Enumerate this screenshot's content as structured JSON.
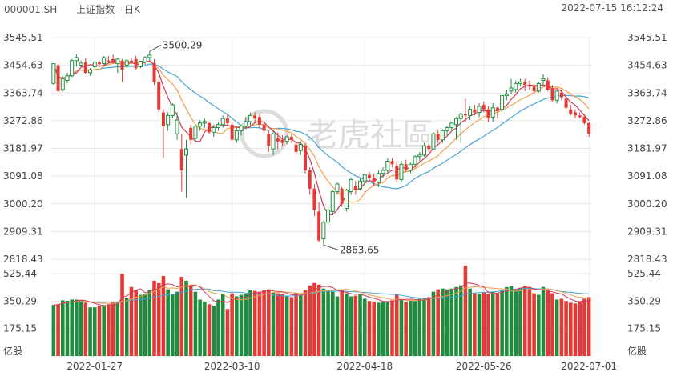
{
  "header": {
    "symbol": "000001.SH",
    "name": "上证指数 - 日K",
    "timestamp": "2022-07-15 16:12:24"
  },
  "watermark": "老虎社區",
  "colors": {
    "up": "#e53935",
    "down": "#1e8e3e",
    "ma5": "#d23a59",
    "ma10": "#f0a04a",
    "ma20": "#48a6d8",
    "vol_ma5": "#d23a59",
    "vol_ma10": "#f0a04a",
    "vol_ma20": "#48a6d8"
  },
  "chart_data": {
    "type": "candlestick",
    "price_axis": {
      "ticks": [
        "3545.51",
        "3454.63",
        "3363.74",
        "3272.86",
        "3181.97",
        "3091.08",
        "3000.20",
        "2909.31",
        "2818.43"
      ],
      "range": [
        2818.43,
        3545.51
      ]
    },
    "volume_axis": {
      "ticks": [
        "525.44",
        "350.29",
        "175.15",
        "亿股"
      ],
      "range": [
        0,
        525.44
      ]
    },
    "x_axis": {
      "ticks": [
        "2022-01-27",
        "2022-03-10",
        "2022-04-18",
        "2022-05-26",
        "2022-07-01"
      ]
    },
    "annotations": [
      {
        "label": "3500.29"
      },
      {
        "label": "2863.65"
      }
    ],
    "series": [
      "MA5",
      "MA10",
      "MA20"
    ],
    "candles": [
      {
        "o": 3395,
        "h": 3460,
        "l": 3390,
        "c": 3460,
        "v": 325
      },
      {
        "o": 3455,
        "h": 3470,
        "l": 3360,
        "c": 3370,
        "v": 330
      },
      {
        "o": 3375,
        "h": 3420,
        "l": 3368,
        "c": 3410,
        "v": 355
      },
      {
        "o": 3405,
        "h": 3430,
        "l": 3395,
        "c": 3420,
        "v": 352
      },
      {
        "o": 3420,
        "h": 3475,
        "l": 3415,
        "c": 3470,
        "v": 360
      },
      {
        "o": 3470,
        "h": 3490,
        "l": 3450,
        "c": 3480,
        "v": 360
      },
      {
        "o": 3455,
        "h": 3470,
        "l": 3450,
        "c": 3462,
        "v": 355
      },
      {
        "o": 3465,
        "h": 3480,
        "l": 3425,
        "c": 3430,
        "v": 340
      },
      {
        "o": 3430,
        "h": 3445,
        "l": 3420,
        "c": 3440,
        "v": 310
      },
      {
        "o": 3450,
        "h": 3470,
        "l": 3445,
        "c": 3465,
        "v": 310
      },
      {
        "o": 3465,
        "h": 3470,
        "l": 3455,
        "c": 3458,
        "v": 320
      },
      {
        "o": 3460,
        "h": 3485,
        "l": 3455,
        "c": 3480,
        "v": 325
      },
      {
        "o": 3470,
        "h": 3485,
        "l": 3460,
        "c": 3466,
        "v": 330
      },
      {
        "o": 3475,
        "h": 3490,
        "l": 3460,
        "c": 3462,
        "v": 345
      },
      {
        "o": 3460,
        "h": 3480,
        "l": 3430,
        "c": 3475,
        "v": 345
      },
      {
        "o": 3470,
        "h": 3475,
        "l": 3400,
        "c": 3440,
        "v": 525
      },
      {
        "o": 3455,
        "h": 3475,
        "l": 3445,
        "c": 3470,
        "v": 370
      },
      {
        "o": 3470,
        "h": 3480,
        "l": 3460,
        "c": 3465,
        "v": 440
      },
      {
        "o": 3475,
        "h": 3485,
        "l": 3440,
        "c": 3445,
        "v": 420
      },
      {
        "o": 3450,
        "h": 3470,
        "l": 3445,
        "c": 3468,
        "v": 390
      },
      {
        "o": 3465,
        "h": 3485,
        "l": 3455,
        "c": 3480,
        "v": 395
      },
      {
        "o": 3480,
        "h": 3500,
        "l": 3470,
        "c": 3488,
        "v": 420
      },
      {
        "o": 3462,
        "h": 3475,
        "l": 3390,
        "c": 3400,
        "v": 480
      },
      {
        "o": 3400,
        "h": 3410,
        "l": 3300,
        "c": 3310,
        "v": 465
      },
      {
        "o": 3300,
        "h": 3310,
        "l": 3150,
        "c": 3255,
        "v": 510
      },
      {
        "o": 3260,
        "h": 3300,
        "l": 3240,
        "c": 3290,
        "v": 425
      },
      {
        "o": 3290,
        "h": 3330,
        "l": 3280,
        "c": 3325,
        "v": 395
      },
      {
        "o": 3230,
        "h": 3300,
        "l": 3210,
        "c": 3275,
        "v": 410
      },
      {
        "o": 3180,
        "h": 3230,
        "l": 3040,
        "c": 3110,
        "v": 505
      },
      {
        "o": 3160,
        "h": 3210,
        "l": 3020,
        "c": 3180,
        "v": 480
      },
      {
        "o": 3250,
        "h": 3260,
        "l": 3195,
        "c": 3210,
        "v": 450
      },
      {
        "o": 3215,
        "h": 3260,
        "l": 3205,
        "c": 3255,
        "v": 410
      },
      {
        "o": 3255,
        "h": 3275,
        "l": 3240,
        "c": 3265,
        "v": 360
      },
      {
        "o": 3265,
        "h": 3280,
        "l": 3250,
        "c": 3270,
        "v": 345
      },
      {
        "o": 3265,
        "h": 3270,
        "l": 3230,
        "c": 3235,
        "v": 330
      },
      {
        "o": 3235,
        "h": 3260,
        "l": 3220,
        "c": 3250,
        "v": 320
      },
      {
        "o": 3250,
        "h": 3270,
        "l": 3240,
        "c": 3260,
        "v": 360
      },
      {
        "o": 3260,
        "h": 3290,
        "l": 3250,
        "c": 3280,
        "v": 395
      },
      {
        "o": 3280,
        "h": 3295,
        "l": 3260,
        "c": 3265,
        "v": 300
      },
      {
        "o": 3260,
        "h": 3270,
        "l": 3200,
        "c": 3210,
        "v": 400
      },
      {
        "o": 3210,
        "h": 3250,
        "l": 3200,
        "c": 3240,
        "v": 380
      },
      {
        "o": 3240,
        "h": 3260,
        "l": 3225,
        "c": 3255,
        "v": 390
      },
      {
        "o": 3255,
        "h": 3285,
        "l": 3245,
        "c": 3270,
        "v": 395
      },
      {
        "o": 3270,
        "h": 3300,
        "l": 3255,
        "c": 3290,
        "v": 420
      },
      {
        "o": 3290,
        "h": 3300,
        "l": 3265,
        "c": 3280,
        "v": 415
      },
      {
        "o": 3285,
        "h": 3295,
        "l": 3250,
        "c": 3260,
        "v": 410
      },
      {
        "o": 3260,
        "h": 3275,
        "l": 3230,
        "c": 3240,
        "v": 420
      },
      {
        "o": 3230,
        "h": 3240,
        "l": 3170,
        "c": 3190,
        "v": 425
      },
      {
        "o": 3180,
        "h": 3240,
        "l": 3160,
        "c": 3230,
        "v": 405
      },
      {
        "o": 3215,
        "h": 3235,
        "l": 3180,
        "c": 3205,
        "v": 400
      },
      {
        "o": 3210,
        "h": 3225,
        "l": 3190,
        "c": 3200,
        "v": 395
      },
      {
        "o": 3205,
        "h": 3225,
        "l": 3195,
        "c": 3220,
        "v": 380
      },
      {
        "o": 3220,
        "h": 3230,
        "l": 3200,
        "c": 3210,
        "v": 375
      },
      {
        "o": 3195,
        "h": 3205,
        "l": 3160,
        "c": 3170,
        "v": 400
      },
      {
        "o": 3175,
        "h": 3205,
        "l": 3160,
        "c": 3195,
        "v": 385
      },
      {
        "o": 3190,
        "h": 3200,
        "l": 3100,
        "c": 3110,
        "v": 420
      },
      {
        "o": 3110,
        "h": 3120,
        "l": 3030,
        "c": 3050,
        "v": 450
      },
      {
        "o": 3050,
        "h": 3065,
        "l": 2960,
        "c": 2980,
        "v": 465
      },
      {
        "o": 2975,
        "h": 3005,
        "l": 2875,
        "c": 2880,
        "v": 455
      },
      {
        "o": 2885,
        "h": 2945,
        "l": 2865,
        "c": 2940,
        "v": 430
      },
      {
        "o": 2940,
        "h": 2990,
        "l": 2930,
        "c": 2980,
        "v": 420
      },
      {
        "o": 2975,
        "h": 3045,
        "l": 2965,
        "c": 3040,
        "v": 410
      },
      {
        "o": 3040,
        "h": 3070,
        "l": 3030,
        "c": 3065,
        "v": 380
      },
      {
        "o": 3050,
        "h": 3055,
        "l": 2990,
        "c": 3000,
        "v": 420
      },
      {
        "o": 2985,
        "h": 3050,
        "l": 2975,
        "c": 3045,
        "v": 400
      },
      {
        "o": 3040,
        "h": 3085,
        "l": 3030,
        "c": 3080,
        "v": 380
      },
      {
        "o": 3060,
        "h": 3075,
        "l": 3030,
        "c": 3045,
        "v": 385
      },
      {
        "o": 3050,
        "h": 3085,
        "l": 3045,
        "c": 3075,
        "v": 395
      },
      {
        "o": 3075,
        "h": 3100,
        "l": 3060,
        "c": 3095,
        "v": 365
      },
      {
        "o": 3095,
        "h": 3105,
        "l": 3075,
        "c": 3085,
        "v": 350
      },
      {
        "o": 3085,
        "h": 3100,
        "l": 3060,
        "c": 3070,
        "v": 345
      },
      {
        "o": 3070,
        "h": 3110,
        "l": 3055,
        "c": 3100,
        "v": 340
      },
      {
        "o": 3100,
        "h": 3120,
        "l": 3085,
        "c": 3110,
        "v": 345
      },
      {
        "o": 3110,
        "h": 3150,
        "l": 3100,
        "c": 3140,
        "v": 350
      },
      {
        "o": 3140,
        "h": 3150,
        "l": 3120,
        "c": 3130,
        "v": 355
      },
      {
        "o": 3125,
        "h": 3140,
        "l": 3070,
        "c": 3080,
        "v": 395
      },
      {
        "o": 3080,
        "h": 3140,
        "l": 3070,
        "c": 3130,
        "v": 360
      },
      {
        "o": 3130,
        "h": 3145,
        "l": 3105,
        "c": 3110,
        "v": 345
      },
      {
        "o": 3110,
        "h": 3135,
        "l": 3100,
        "c": 3130,
        "v": 355
      },
      {
        "o": 3130,
        "h": 3160,
        "l": 3125,
        "c": 3155,
        "v": 350
      },
      {
        "o": 3155,
        "h": 3170,
        "l": 3140,
        "c": 3160,
        "v": 365
      },
      {
        "o": 3160,
        "h": 3200,
        "l": 3155,
        "c": 3190,
        "v": 370
      },
      {
        "o": 3190,
        "h": 3200,
        "l": 3170,
        "c": 3180,
        "v": 375
      },
      {
        "o": 3180,
        "h": 3235,
        "l": 3175,
        "c": 3230,
        "v": 410
      },
      {
        "o": 3230,
        "h": 3240,
        "l": 3200,
        "c": 3210,
        "v": 425
      },
      {
        "o": 3210,
        "h": 3245,
        "l": 3200,
        "c": 3240,
        "v": 430
      },
      {
        "o": 3240,
        "h": 3255,
        "l": 3225,
        "c": 3250,
        "v": 425
      },
      {
        "o": 3250,
        "h": 3270,
        "l": 3240,
        "c": 3265,
        "v": 430
      },
      {
        "o": 3260,
        "h": 3285,
        "l": 3210,
        "c": 3280,
        "v": 440
      },
      {
        "o": 3280,
        "h": 3300,
        "l": 3200,
        "c": 3295,
        "v": 450
      },
      {
        "o": 3295,
        "h": 3345,
        "l": 3270,
        "c": 3290,
        "v": 575
      },
      {
        "o": 3290,
        "h": 3320,
        "l": 3275,
        "c": 3310,
        "v": 430
      },
      {
        "o": 3310,
        "h": 3325,
        "l": 3290,
        "c": 3300,
        "v": 400
      },
      {
        "o": 3300,
        "h": 3330,
        "l": 3285,
        "c": 3320,
        "v": 395
      },
      {
        "o": 3325,
        "h": 3335,
        "l": 3300,
        "c": 3310,
        "v": 405
      },
      {
        "o": 3310,
        "h": 3320,
        "l": 3270,
        "c": 3280,
        "v": 395
      },
      {
        "o": 3285,
        "h": 3330,
        "l": 3270,
        "c": 3315,
        "v": 410
      },
      {
        "o": 3315,
        "h": 3320,
        "l": 3280,
        "c": 3305,
        "v": 400
      },
      {
        "o": 3310,
        "h": 3360,
        "l": 3300,
        "c": 3355,
        "v": 420
      },
      {
        "o": 3355,
        "h": 3375,
        "l": 3340,
        "c": 3360,
        "v": 440
      },
      {
        "o": 3370,
        "h": 3410,
        "l": 3360,
        "c": 3380,
        "v": 445
      },
      {
        "o": 3375,
        "h": 3405,
        "l": 3365,
        "c": 3395,
        "v": 420
      },
      {
        "o": 3395,
        "h": 3410,
        "l": 3385,
        "c": 3400,
        "v": 435
      },
      {
        "o": 3400,
        "h": 3410,
        "l": 3370,
        "c": 3390,
        "v": 445
      },
      {
        "o": 3390,
        "h": 3405,
        "l": 3375,
        "c": 3385,
        "v": 440
      },
      {
        "o": 3385,
        "h": 3395,
        "l": 3360,
        "c": 3370,
        "v": 400
      },
      {
        "o": 3370,
        "h": 3400,
        "l": 3365,
        "c": 3395,
        "v": 390
      },
      {
        "o": 3405,
        "h": 3425,
        "l": 3390,
        "c": 3410,
        "v": 440
      },
      {
        "o": 3405,
        "h": 3415,
        "l": 3370,
        "c": 3375,
        "v": 415
      },
      {
        "o": 3380,
        "h": 3390,
        "l": 3335,
        "c": 3340,
        "v": 400
      },
      {
        "o": 3340,
        "h": 3375,
        "l": 3330,
        "c": 3370,
        "v": 360
      },
      {
        "o": 3365,
        "h": 3375,
        "l": 3340,
        "c": 3350,
        "v": 365
      },
      {
        "o": 3345,
        "h": 3355,
        "l": 3310,
        "c": 3315,
        "v": 350
      },
      {
        "o": 3310,
        "h": 3325,
        "l": 3290,
        "c": 3295,
        "v": 340
      },
      {
        "o": 3300,
        "h": 3310,
        "l": 3280,
        "c": 3290,
        "v": 335
      },
      {
        "o": 3290,
        "h": 3300,
        "l": 3280,
        "c": 3285,
        "v": 345
      },
      {
        "o": 3285,
        "h": 3295,
        "l": 3260,
        "c": 3265,
        "v": 365
      },
      {
        "o": 3265,
        "h": 3270,
        "l": 3220,
        "c": 3230,
        "v": 375
      }
    ]
  }
}
